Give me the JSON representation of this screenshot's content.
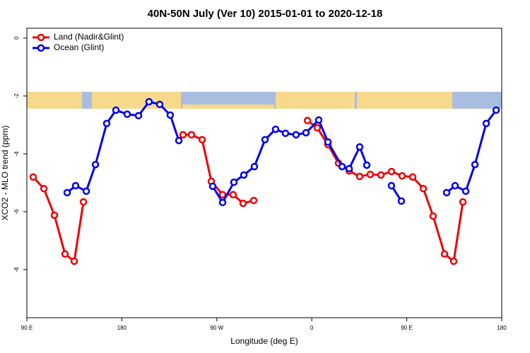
{
  "chart_data": {
    "type": "line",
    "title": "40N-50N July (Ver 10)   2015-01-01 to 2020-12-18",
    "x_label": "Longitude (deg E)",
    "y_label": "XCO2 - MLO trend (ppm)",
    "xlim": [
      90,
      540
    ],
    "xticks": [
      {
        "value": 90,
        "label": "90 E"
      },
      180,
      {
        "value": 270,
        "label": "90 W"
      },
      {
        "value": 360,
        "label": "0"
      },
      {
        "value": 450,
        "label": "90 E"
      },
      {
        "value": 540,
        "label": "180"
      }
    ],
    "ylim": [
      -9.66,
      0.34
    ],
    "yticks": [
      0,
      -2,
      -4,
      -6,
      -8
    ],
    "legend": "top-left",
    "series": [
      {
        "name": "Land (Nadir&Glint)",
        "color": "#ee0000",
        "x": [
          96.0,
          106.1,
          116.1,
          126.2,
          134.9,
          143.6,
          null,
          238.0,
          246.0,
          256.1,
          264.8,
          275.5,
          285.5,
          294.9,
          305.0,
          null,
          355.9,
          365.2,
          375.3,
          385.3,
          395.4,
          405.4,
          415.4,
          425.5,
          435.5,
          445.6,
          455.6,
          465.7,
          475.0,
          485.8,
          494.5,
          503.2
        ],
        "values": [
          -4.8,
          -5.2,
          -6.12,
          -7.46,
          -7.71,
          -5.66,
          null,
          -3.34,
          -3.34,
          -3.51,
          -4.95,
          -5.41,
          -5.41,
          -5.71,
          -5.61,
          null,
          -2.85,
          -3.1,
          -3.68,
          -4.32,
          -4.59,
          -4.78,
          -4.71,
          -4.73,
          -4.61,
          -4.76,
          -4.8,
          -5.2,
          -6.15,
          -7.46,
          -7.71,
          -5.66
        ]
      },
      {
        "name": "Ocean (Glint)",
        "color": "#0000ee",
        "x": [
          128.2,
          136.2,
          146.3,
          155.0,
          165.7,
          174.4,
          185.1,
          195.8,
          205.8,
          215.9,
          225.9,
          234.0,
          null,
          266.1,
          275.5,
          286.2,
          295.6,
          305.6,
          315.7,
          325.7,
          335.1,
          345.1,
          354.5,
          366.6,
          375.3,
          388.7,
          395.4,
          405.4,
          412.1,
          null,
          435.5,
          444.9,
          null,
          487.8,
          495.8,
          505.9,
          514.6,
          525.3,
          534.7
        ],
        "values": [
          -5.34,
          -5.1,
          -5.29,
          -4.37,
          -2.95,
          -2.49,
          -2.63,
          -2.68,
          -2.2,
          -2.29,
          -2.66,
          -3.54,
          null,
          -5.12,
          -5.68,
          -4.98,
          -4.73,
          -4.44,
          -3.51,
          -3.15,
          -3.29,
          -3.34,
          -3.27,
          -2.83,
          -3.59,
          -4.44,
          -4.51,
          -3.76,
          -4.39,
          null,
          -5.1,
          -5.63,
          null,
          -5.34,
          -5.1,
          -5.29,
          -4.37,
          -2.95,
          -2.49
        ]
      }
    ]
  }
}
